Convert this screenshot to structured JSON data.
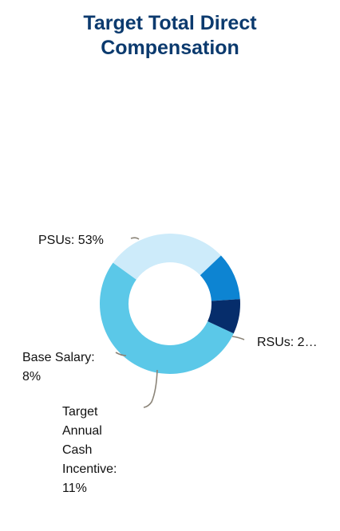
{
  "title": {
    "line1": "Target Total Direct",
    "line2": "Compensation"
  },
  "chart_data": {
    "type": "pie",
    "variant": "donut",
    "title": "Target Total Direct Compensation",
    "categories": [
      "PSUs",
      "RSUs",
      "Target Annual Cash Incentive",
      "Base Salary"
    ],
    "values": [
      53,
      28,
      11,
      8
    ],
    "unit": "%",
    "colors": [
      "#5bc8e8",
      "#cdebfa",
      "#0d84d2",
      "#062d6b"
    ],
    "leader_line_color": "#8b8478",
    "legend": "none"
  },
  "labels": {
    "psus": "PSUs: 53%",
    "rsus": "RSUs: 2…",
    "base_salary": "Base Salary: 8%",
    "target_annual_cash_incentive": "Target Annual Cash Incentive: 11%"
  }
}
